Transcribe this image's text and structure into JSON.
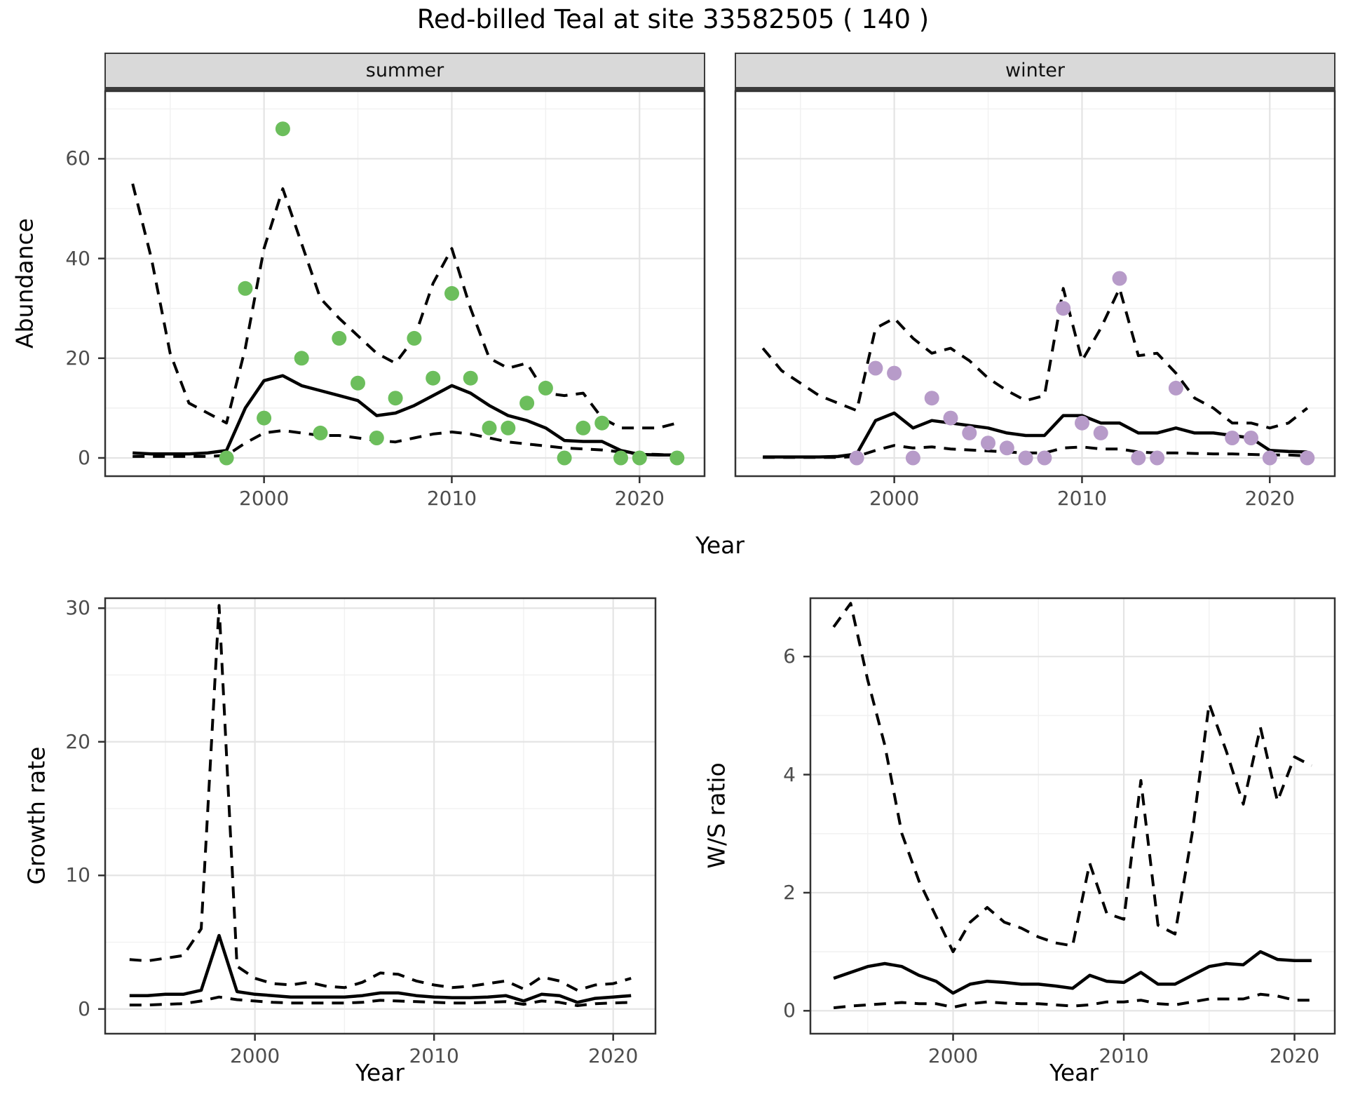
{
  "title": "Red-billed Teal at site 33582505 ( 140 )",
  "palette": {
    "summer_point": "#6CBE5C",
    "winter_point": "#B79BC9",
    "line": "#000000",
    "strip_bg": "#D9D9D9",
    "grid_major": "#E4E4E4",
    "grid_minor": "#F1F1F1",
    "tick_text": "#4D4D4D",
    "panel_border": "#333333"
  },
  "chart_data": [
    {
      "type": "line",
      "facet": "summer",
      "xlabel": "Year",
      "ylabel": "Abundance",
      "x": [
        1993,
        1994,
        1995,
        1996,
        1997,
        1998,
        1999,
        2000,
        2001,
        2002,
        2003,
        2004,
        2005,
        2006,
        2007,
        2008,
        2009,
        2010,
        2011,
        2012,
        2013,
        2014,
        2015,
        2016,
        2017,
        2018,
        2019,
        2020,
        2021,
        2022
      ],
      "series": [
        {
          "name": "median",
          "style": "solid",
          "values": [
            1,
            0.8,
            0.8,
            0.8,
            1,
            1.5,
            10,
            15.5,
            16.5,
            14.5,
            13.5,
            12.5,
            11.5,
            8.5,
            9,
            10.5,
            12.5,
            14.5,
            13,
            10.5,
            8.5,
            7.5,
            6,
            3.5,
            3.3,
            3.3,
            1.5,
            0.7,
            0.6,
            0.6
          ]
        },
        {
          "name": "upper-95ci",
          "style": "dashed",
          "values": [
            55,
            40,
            21,
            11,
            9,
            7,
            22,
            42,
            54,
            43,
            32,
            28,
            24.5,
            21,
            19,
            24,
            35,
            42,
            30,
            20,
            18,
            19,
            13,
            12.5,
            13,
            8,
            6,
            6,
            6,
            7
          ]
        },
        {
          "name": "lower-95ci",
          "style": "dashed",
          "values": [
            0.3,
            0.3,
            0.3,
            0.3,
            0.3,
            0.5,
            3,
            5,
            5.5,
            5,
            4.5,
            4.5,
            4,
            3.5,
            3.2,
            4,
            4.8,
            5.2,
            4.8,
            4,
            3.2,
            2.8,
            2.4,
            2,
            1.8,
            1.6,
            1.2,
            0.8,
            0.7,
            0.5
          ]
        }
      ],
      "points": {
        "name": "observed-count",
        "color": "#6CBE5C",
        "x": [
          1998,
          1999,
          2000,
          2001,
          2002,
          2003,
          2004,
          2005,
          2006,
          2007,
          2008,
          2009,
          2010,
          2011,
          2012,
          2013,
          2014,
          2015,
          2016,
          2017,
          2018,
          2019,
          2020,
          2022
        ],
        "y": [
          0,
          34,
          8,
          66,
          20,
          5,
          24,
          15,
          4,
          12,
          24,
          16,
          33,
          16,
          6,
          6,
          11,
          14,
          0,
          6,
          7,
          0,
          0,
          0
        ]
      },
      "xlim": [
        1991.5,
        2023.5
      ],
      "ylim": [
        -3.8,
        73.7
      ],
      "xticks": [
        2000,
        2010,
        2020
      ],
      "xticks_minor": [
        1995,
        2005,
        2015
      ],
      "yticks": [
        0,
        20,
        40,
        60
      ],
      "yticks_minor": [
        10,
        30,
        50,
        70
      ],
      "grid": true,
      "legend": false
    },
    {
      "type": "line",
      "facet": "winter",
      "xlabel": "Year",
      "ylabel": "Abundance",
      "x": [
        1993,
        1994,
        1995,
        1996,
        1997,
        1998,
        1999,
        2000,
        2001,
        2002,
        2003,
        2004,
        2005,
        2006,
        2007,
        2008,
        2009,
        2010,
        2011,
        2012,
        2013,
        2014,
        2015,
        2016,
        2017,
        2018,
        2019,
        2020,
        2021,
        2022
      ],
      "series": [
        {
          "name": "median",
          "style": "solid",
          "values": [
            0.2,
            0.2,
            0.2,
            0.2,
            0.3,
            0.8,
            7.5,
            9,
            6,
            7.5,
            7,
            6.5,
            6,
            5,
            4.5,
            4.5,
            8.5,
            8.5,
            7,
            7,
            5,
            5,
            6,
            5,
            5,
            4.5,
            4,
            1.5,
            1.3,
            1.2
          ]
        },
        {
          "name": "upper-95ci",
          "style": "dashed",
          "values": [
            22,
            17.5,
            15,
            12.5,
            11,
            9.5,
            26,
            28,
            24,
            21,
            22,
            19.5,
            16,
            13.5,
            11.5,
            12.5,
            34,
            19.5,
            26,
            34,
            20.5,
            21,
            17,
            12,
            10,
            7,
            7,
            6,
            7,
            10
          ]
        },
        {
          "name": "lower-95ci",
          "style": "dashed",
          "values": [
            0.1,
            0.1,
            0.1,
            0.1,
            0.1,
            0.3,
            1.5,
            2.5,
            2,
            2.2,
            1.8,
            1.6,
            1.4,
            1.2,
            1,
            1,
            2,
            2.2,
            1.8,
            1.8,
            1.2,
            1,
            1,
            0.9,
            0.8,
            0.8,
            0.7,
            0.6,
            0.6,
            0.4
          ]
        }
      ],
      "points": {
        "name": "observed-count",
        "color": "#B79BC9",
        "x": [
          1998,
          1999,
          2000,
          2001,
          2002,
          2003,
          2004,
          2005,
          2006,
          2007,
          2008,
          2009,
          2010,
          2011,
          2012,
          2013,
          2014,
          2015,
          2018,
          2019,
          2020,
          2022
        ],
        "y": [
          0,
          18,
          17,
          0,
          12,
          8,
          5,
          3,
          2,
          0,
          0,
          30,
          7,
          5,
          36,
          0,
          0,
          14,
          4,
          4,
          0,
          0
        ]
      },
      "xlim": [
        1991.5,
        2023.5
      ],
      "ylim": [
        -3.8,
        73.7
      ],
      "xticks": [
        2000,
        2010,
        2020
      ],
      "xticks_minor": [
        1995,
        2005,
        2015
      ],
      "yticks": [
        0,
        20,
        40,
        60
      ],
      "yticks_minor": [
        10,
        30,
        50,
        70
      ],
      "grid": true,
      "legend": false
    },
    {
      "type": "line",
      "facet": "",
      "xlabel": "Year",
      "ylabel": "Growth rate",
      "x": [
        1993,
        1994,
        1995,
        1996,
        1997,
        1998,
        1999,
        2000,
        2001,
        2002,
        2003,
        2004,
        2005,
        2006,
        2007,
        2008,
        2009,
        2010,
        2011,
        2012,
        2013,
        2014,
        2015,
        2016,
        2017,
        2018,
        2019,
        2020,
        2021
      ],
      "series": [
        {
          "name": "median",
          "style": "solid",
          "values": [
            1,
            1,
            1.1,
            1.1,
            1.4,
            5.5,
            1.3,
            1.1,
            1,
            0.9,
            0.9,
            0.9,
            0.9,
            1,
            1.2,
            1.2,
            1,
            0.9,
            0.85,
            0.85,
            0.9,
            1,
            0.6,
            1.1,
            1,
            0.5,
            0.8,
            0.9,
            1
          ]
        },
        {
          "name": "upper-95ci",
          "style": "dashed",
          "values": [
            3.7,
            3.6,
            3.8,
            4,
            6,
            30.2,
            3.2,
            2.3,
            1.9,
            1.8,
            2,
            1.7,
            1.6,
            2,
            2.7,
            2.6,
            2.1,
            1.8,
            1.6,
            1.7,
            1.9,
            2.1,
            1.5,
            2.4,
            2.1,
            1.4,
            1.8,
            1.9,
            2.3
          ]
        },
        {
          "name": "lower-95ci",
          "style": "dashed",
          "values": [
            0.3,
            0.3,
            0.35,
            0.4,
            0.6,
            0.9,
            0.7,
            0.6,
            0.5,
            0.45,
            0.45,
            0.45,
            0.45,
            0.5,
            0.65,
            0.6,
            0.55,
            0.5,
            0.45,
            0.45,
            0.5,
            0.55,
            0.35,
            0.6,
            0.5,
            0.25,
            0.4,
            0.45,
            0.5
          ]
        }
      ],
      "xlim": [
        1991.6,
        2022.4
      ],
      "ylim": [
        -1.9,
        30.8
      ],
      "xticks": [
        2000,
        2010,
        2020
      ],
      "xticks_minor": [
        1995,
        2005,
        2015
      ],
      "yticks": [
        0,
        10,
        20,
        30
      ],
      "yticks_minor": [
        5,
        15,
        25
      ],
      "grid": true,
      "legend": false
    },
    {
      "type": "line",
      "facet": "",
      "xlabel": "Year",
      "ylabel": "W/S ratio",
      "x": [
        1993,
        1994,
        1995,
        1996,
        1997,
        1998,
        1999,
        2000,
        2001,
        2002,
        2003,
        2004,
        2005,
        2006,
        2007,
        2008,
        2009,
        2010,
        2011,
        2012,
        2013,
        2014,
        2015,
        2016,
        2017,
        2018,
        2019,
        2020,
        2021
      ],
      "series": [
        {
          "name": "median",
          "style": "solid",
          "values": [
            0.55,
            0.65,
            0.75,
            0.8,
            0.75,
            0.6,
            0.5,
            0.3,
            0.45,
            0.5,
            0.48,
            0.45,
            0.45,
            0.42,
            0.38,
            0.6,
            0.5,
            0.48,
            0.65,
            0.45,
            0.45,
            0.6,
            0.75,
            0.8,
            0.78,
            1,
            0.87,
            0.85,
            0.85
          ]
        },
        {
          "name": "upper-95ci",
          "style": "dashed",
          "values": [
            6.5,
            6.9,
            5.6,
            4.5,
            3,
            2.2,
            1.6,
            1,
            1.5,
            1.75,
            1.5,
            1.4,
            1.25,
            1.15,
            1.1,
            2.5,
            1.65,
            1.55,
            3.9,
            1.45,
            1.3,
            3,
            5.2,
            4.4,
            3.5,
            4.8,
            3.55,
            4.3,
            4.15
          ]
        },
        {
          "name": "lower-95ci",
          "style": "dashed",
          "values": [
            0.05,
            0.08,
            0.1,
            0.12,
            0.14,
            0.12,
            0.12,
            0.06,
            0.12,
            0.15,
            0.13,
            0.12,
            0.12,
            0.1,
            0.08,
            0.1,
            0.15,
            0.15,
            0.18,
            0.12,
            0.1,
            0.15,
            0.2,
            0.2,
            0.2,
            0.28,
            0.25,
            0.18,
            0.18
          ]
        }
      ],
      "xlim": [
        1991.6,
        2022.4
      ],
      "ylim": [
        -0.4,
        7.0
      ],
      "xticks": [
        2000,
        2010,
        2020
      ],
      "xticks_minor": [
        1995,
        2005,
        2015
      ],
      "yticks": [
        0,
        2,
        4,
        6
      ],
      "yticks_minor": [
        1,
        3,
        5
      ],
      "grid": true,
      "legend": false
    }
  ]
}
